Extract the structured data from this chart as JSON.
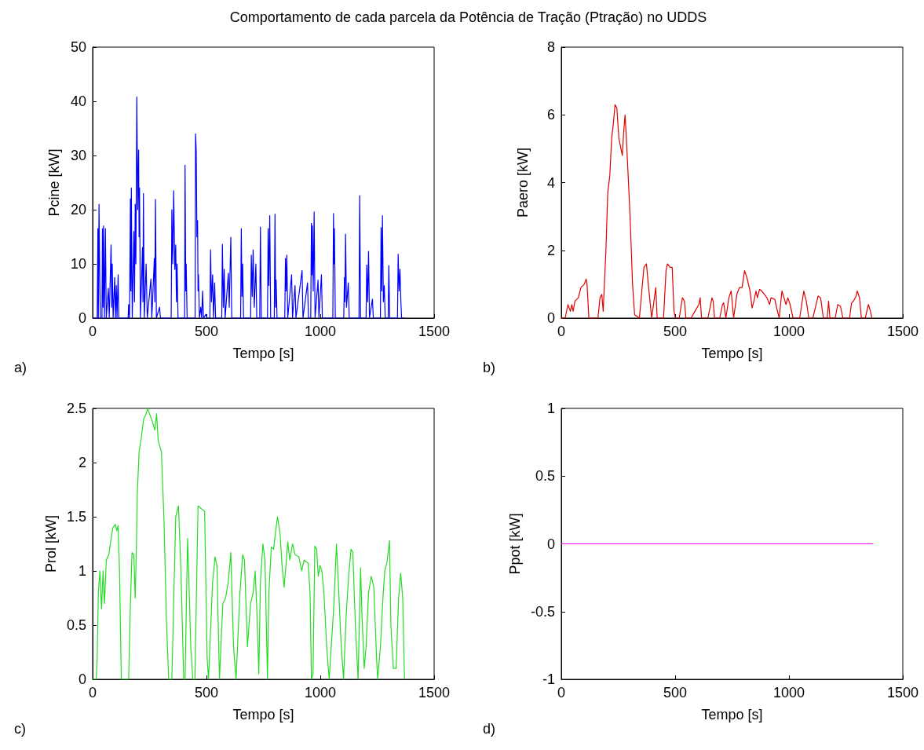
{
  "chart_data": [
    {
      "type": "line",
      "title": "Comportamento de cada parcela da Potência de Tração (Ptração) no UDDS",
      "xlabel": "Tempo [s]",
      "ylabel": "Pcine [kW]",
      "annotations": [
        "a)"
      ],
      "xlim": [
        0,
        1500
      ],
      "xticks": [
        0,
        500,
        1000,
        1500
      ],
      "ylim": [
        0,
        50
      ],
      "yticks": [
        0,
        10,
        20,
        30,
        40,
        50
      ],
      "grid": false,
      "series": [
        {
          "color": "#0000ff",
          "x": [
            0,
            20,
            23,
            25,
            28,
            31,
            34,
            41,
            43,
            46,
            48,
            52,
            56,
            60,
            69,
            73,
            81,
            84,
            86,
            90,
            97,
            100,
            104,
            107,
            112,
            115,
            156,
            158,
            162,
            166,
            168,
            170,
            174,
            181,
            184,
            187,
            190,
            194,
            198,
            202,
            204,
            206,
            210,
            219,
            221,
            223,
            227,
            235,
            240,
            256,
            260,
            271,
            273,
            276,
            280,
            294,
            298,
            345,
            348,
            352,
            356,
            361,
            365,
            368,
            371,
            375,
            404,
            406,
            409,
            411,
            415,
            450,
            452,
            455,
            458,
            461,
            463,
            465,
            469,
            475,
            479,
            483,
            487,
            498,
            502,
            515,
            518,
            522,
            527,
            531,
            536,
            540,
            567,
            570,
            574,
            578,
            582,
            596,
            600,
            607,
            611,
            650,
            653,
            656,
            659,
            663,
            694,
            697,
            701,
            705,
            710,
            717,
            721,
            734,
            737,
            741,
            768,
            771,
            774,
            778,
            782,
            798,
            801,
            804,
            806,
            810,
            844,
            847,
            850,
            853,
            857,
            874,
            878,
            889,
            893,
            920,
            924,
            944,
            948,
            958,
            961,
            963,
            965,
            969,
            973,
            977,
            990,
            994,
            1005,
            1009,
            1055,
            1058,
            1060,
            1062,
            1066,
            1103,
            1106,
            1108,
            1111,
            1115,
            1123,
            1127,
            1170,
            1173,
            1177,
            1201,
            1204,
            1208,
            1212,
            1216,
            1229,
            1233,
            1264,
            1267,
            1270,
            1273,
            1277,
            1281,
            1285,
            1298,
            1301,
            1305,
            1339,
            1342,
            1346,
            1350,
            1354,
            1357,
            1369
          ],
          "values": [
            0,
            0,
            16.5,
            0,
            21,
            7.8,
            0,
            0,
            16.5,
            2,
            17,
            0,
            16.5,
            0,
            5.5,
            0,
            13.5,
            2,
            10,
            0,
            7.5,
            0,
            6,
            0,
            8,
            0,
            0,
            2.5,
            0,
            22,
            5,
            24,
            0,
            16,
            3,
            21,
            10,
            40.8,
            20,
            31,
            15,
            24,
            0,
            13,
            3,
            23,
            0,
            10,
            0,
            7.2,
            0,
            11,
            3,
            21.9,
            0,
            2,
            0,
            0,
            20,
            10,
            23.5,
            9,
            13.5,
            3,
            10,
            0,
            0,
            28.2,
            5,
            10,
            0,
            0,
            34,
            31,
            15,
            18,
            5,
            8,
            0,
            2,
            0,
            5,
            0,
            0.7,
            0,
            0,
            12.6,
            3,
            8,
            0,
            6.5,
            0,
            0,
            13.6,
            2,
            9,
            0,
            8.3,
            2,
            14.9,
            0,
            0,
            16.5,
            4,
            10,
            0,
            0,
            11.6,
            4,
            12.6,
            2,
            10,
            0,
            0,
            16.8,
            0,
            0,
            16.5,
            6,
            18.9,
            0,
            0,
            19.2,
            2,
            7,
            0,
            0,
            11,
            5,
            11.6,
            0,
            8,
            0,
            6,
            0,
            8.8,
            0,
            6.5,
            0,
            0,
            17.5,
            8,
            17,
            5,
            19.6,
            0,
            7,
            0,
            8,
            0,
            0,
            19.3,
            10,
            16.5,
            0,
            0,
            7.5,
            3,
            15.5,
            2,
            6.5,
            0,
            0,
            22.6,
            0,
            0,
            9.8,
            3,
            12.3,
            0,
            3.5,
            0,
            0,
            16.7,
            5,
            18.9,
            3,
            6,
            0,
            0,
            9.7,
            0,
            0,
            11.8,
            5,
            9,
            3,
            0,
            0
          ]
        }
      ]
    },
    {
      "type": "line",
      "xlabel": "Tempo [s]",
      "ylabel": "Paero [kW]",
      "annotations": [
        "b)"
      ],
      "xlim": [
        0,
        1500
      ],
      "xticks": [
        0,
        500,
        1000,
        1500
      ],
      "ylim": [
        0,
        8
      ],
      "yticks": [
        0,
        2,
        4,
        6,
        8
      ],
      "grid": false,
      "series": [
        {
          "color": "#e00000",
          "x": [
            0,
            17,
            29,
            40,
            46,
            52,
            60,
            75,
            86,
            101,
            109,
            113,
            121,
            161,
            170,
            178,
            184,
            196,
            204,
            213,
            221,
            228,
            236,
            244,
            253,
            262,
            268,
            274,
            280,
            285,
            293,
            302,
            313,
            322,
            343,
            363,
            374,
            382,
            397,
            409,
            415,
            421,
            449,
            460,
            466,
            478,
            487,
            495,
            501,
            518,
            532,
            541,
            547,
            570,
            587,
            604,
            610,
            616,
            644,
            662,
            667,
            673,
            696,
            708,
            713,
            723,
            736,
            746,
            757,
            771,
            782,
            794,
            805,
            815,
            829,
            838,
            846,
            855,
            861,
            871,
            880,
            892,
            903,
            915,
            921,
            938,
            946,
            957,
            969,
            978,
            987,
            995,
            1005,
            1018,
            1047,
            1065,
            1076,
            1087,
            1105,
            1128,
            1139,
            1151,
            1168,
            1174,
            1180,
            1203,
            1214,
            1226,
            1237,
            1266,
            1275,
            1283,
            1295,
            1300,
            1310,
            1318,
            1335,
            1349,
            1358,
            1364
          ],
          "values": [
            0,
            0,
            0.4,
            0.2,
            0.4,
            0.2,
            0.5,
            0.6,
            0.9,
            1.0,
            1.15,
            1.0,
            0,
            0,
            0.6,
            0.7,
            0.2,
            2.0,
            3.7,
            4.2,
            5.3,
            5.7,
            6.3,
            6.2,
            5.3,
            5.0,
            4.8,
            5.5,
            6.0,
            5.4,
            4.3,
            3.0,
            1.0,
            0.1,
            0,
            1.5,
            1.6,
            1.0,
            0,
            0.6,
            0.9,
            0,
            0,
            1.4,
            1.6,
            1.5,
            1.5,
            0.2,
            0,
            0,
            0.6,
            0.5,
            0,
            0,
            0.2,
            0.4,
            0.6,
            0,
            0,
            0.6,
            0.5,
            0,
            0,
            0.4,
            0.45,
            0,
            0.6,
            0.8,
            0,
            0.7,
            0.9,
            0.9,
            1.4,
            1.2,
            0.8,
            0.3,
            0.5,
            0.8,
            0.6,
            0.85,
            0.8,
            0.7,
            0.6,
            0.4,
            0.6,
            0.55,
            0.3,
            0,
            0.8,
            0.6,
            0.4,
            0.6,
            0.4,
            0,
            0,
            0.8,
            0.5,
            0,
            0,
            0.65,
            0.6,
            0,
            0,
            0.5,
            0,
            0,
            0.4,
            0.35,
            0,
            0,
            0.45,
            0.5,
            0.65,
            0.8,
            0.6,
            0,
            0,
            0.4,
            0.2,
            0
          ]
        }
      ]
    },
    {
      "type": "line",
      "xlabel": "Tempo [s]",
      "ylabel": "Prol [kW]",
      "annotations": [
        "c)"
      ],
      "xlim": [
        0,
        1500
      ],
      "xticks": [
        0,
        500,
        1000,
        1500
      ],
      "ylim": [
        0,
        2.5
      ],
      "yticks": [
        0,
        0.5,
        1,
        1.5,
        2,
        2.5
      ],
      "grid": false,
      "series": [
        {
          "color": "#22dd22",
          "x": [
            0,
            16,
            20,
            25,
            32,
            39,
            46,
            52,
            60,
            71,
            81,
            89,
            100,
            106,
            112,
            118,
            126,
            158,
            166,
            173,
            181,
            187,
            192,
            196,
            204,
            212,
            224,
            233,
            242,
            250,
            262,
            273,
            281,
            288,
            302,
            313,
            325,
            334,
            348,
            365,
            377,
            388,
            400,
            406,
            417,
            423,
            431,
            440,
            449,
            463,
            480,
            492,
            503,
            509,
            527,
            538,
            546,
            557,
            572,
            584,
            596,
            607,
            619,
            630,
            647,
            659,
            667,
            680,
            694,
            705,
            714,
            722,
            730,
            737,
            748,
            757,
            768,
            774,
            785,
            795,
            803,
            812,
            823,
            832,
            841,
            849,
            857,
            866,
            878,
            889,
            906,
            918,
            929,
            947,
            955,
            961,
            968,
            976,
            984,
            991,
            999,
            1007,
            1016,
            1028,
            1039,
            1060,
            1071,
            1079,
            1091,
            1102,
            1114,
            1125,
            1135,
            1143,
            1154,
            1166,
            1177,
            1183,
            1193,
            1201,
            1212,
            1224,
            1235,
            1247,
            1252,
            1264,
            1276,
            1283,
            1293,
            1304,
            1310,
            1321,
            1333,
            1344,
            1353,
            1362,
            1370
          ],
          "values": [
            0,
            0,
            0.2,
            0.8,
            1.0,
            0.65,
            1.0,
            0.7,
            1.1,
            1.15,
            1.3,
            1.4,
            1.43,
            1.37,
            1.42,
            1.0,
            0,
            0,
            0.7,
            1.17,
            1.15,
            0.75,
            1.2,
            1.7,
            2.1,
            2.2,
            2.4,
            2.44,
            2.5,
            2.45,
            2.38,
            2.3,
            2.45,
            2.2,
            2.1,
            1.5,
            0.5,
            0,
            0,
            1.5,
            1.6,
            1.0,
            0,
            0,
            1.3,
            0.9,
            0.3,
            0,
            0,
            1.6,
            1.57,
            1.55,
            0.2,
            0,
            0.9,
            1.13,
            1.05,
            0,
            0.7,
            0.75,
            0.9,
            1.17,
            0.3,
            0,
            0.8,
            1.15,
            1.1,
            0.3,
            0.7,
            0.8,
            1.0,
            0.6,
            0.05,
            0.9,
            1.25,
            1.1,
            0,
            0.8,
            1.22,
            1.2,
            1.35,
            1.5,
            1.35,
            1.05,
            0.85,
            1.05,
            1.27,
            1.1,
            1.25,
            1.15,
            1.13,
            1.0,
            1.1,
            1.07,
            0.8,
            0,
            0.05,
            1.23,
            1.2,
            0.95,
            1.05,
            1.0,
            0.8,
            0.3,
            0,
            0.7,
            1.25,
            0.9,
            0.35,
            0,
            0.6,
            0.97,
            1.2,
            1.17,
            0.5,
            0,
            1.03,
            0.6,
            0.1,
            0.3,
            0.8,
            0.95,
            0.85,
            0.2,
            0,
            0.3,
            0.78,
            1.0,
            1.08,
            1.28,
            0.5,
            0.1,
            0.1,
            0.75,
            0.98,
            0.75,
            0
          ]
        }
      ]
    },
    {
      "type": "line",
      "xlabel": "Tempo [s]",
      "ylabel": "Ppot [kW]",
      "annotations": [
        "d)"
      ],
      "xlim": [
        0,
        1500
      ],
      "xticks": [
        0,
        500,
        1000,
        1500
      ],
      "ylim": [
        -1,
        1
      ],
      "yticks": [
        -1,
        -0.5,
        0,
        0.5,
        1
      ],
      "grid": false,
      "series": [
        {
          "color": "#ff00ff",
          "x": [
            0,
            1370
          ],
          "values": [
            0,
            0
          ]
        }
      ]
    }
  ]
}
